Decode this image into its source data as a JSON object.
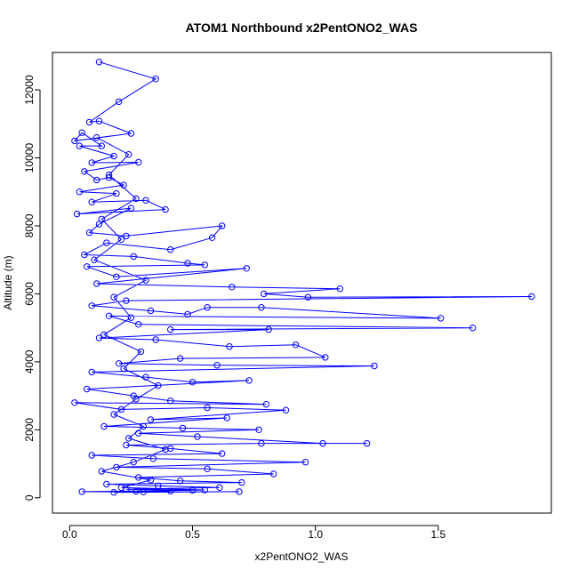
{
  "chart_data": {
    "type": "line",
    "title": "ATOM1 Northbound x2PentONO2_WAS",
    "xlabel": "x2PentONO2_WAS",
    "ylabel": "Altitude (m)",
    "xlim": [
      -0.07,
      1.96
    ],
    "ylim": [
      -450,
      13100
    ],
    "xticks": [
      0.0,
      0.5,
      1.0,
      1.5
    ],
    "xtick_labels": [
      "0.0",
      "0.5",
      "1.0",
      "1.5"
    ],
    "yticks": [
      0,
      2000,
      4000,
      6000,
      8000,
      10000,
      12000
    ],
    "ytick_labels": [
      "0",
      "2000",
      "4000",
      "6000",
      "8000",
      "10000",
      "12000"
    ],
    "grid": false,
    "marker": "open-circle",
    "series": [
      {
        "color": "#0000ff",
        "points": [
          [
            0.12,
            12820
          ],
          [
            0.35,
            12320
          ],
          [
            0.2,
            11650
          ],
          [
            0.08,
            11050
          ],
          [
            0.12,
            11080
          ],
          [
            0.25,
            10720
          ],
          [
            0.02,
            10500
          ],
          [
            0.05,
            10740
          ],
          [
            0.13,
            10350
          ],
          [
            0.04,
            10350
          ],
          [
            0.18,
            10050
          ],
          [
            0.09,
            9860
          ],
          [
            0.28,
            9870
          ],
          [
            0.06,
            9600
          ],
          [
            0.11,
            9350
          ],
          [
            0.16,
            9420
          ],
          [
            0.22,
            9200
          ],
          [
            0.04,
            9000
          ],
          [
            0.19,
            8950
          ],
          [
            0.09,
            8700
          ],
          [
            0.31,
            8750
          ],
          [
            0.39,
            8480
          ],
          [
            0.03,
            8350
          ],
          [
            0.25,
            8520
          ],
          [
            0.12,
            8050
          ],
          [
            0.08,
            7800
          ],
          [
            0.23,
            7700
          ],
          [
            0.62,
            8000
          ],
          [
            0.58,
            7650
          ],
          [
            0.41,
            7300
          ],
          [
            0.15,
            7500
          ],
          [
            0.06,
            7150
          ],
          [
            0.26,
            7100
          ],
          [
            0.48,
            6900
          ],
          [
            0.55,
            6850
          ],
          [
            0.07,
            6800
          ],
          [
            0.19,
            6500
          ],
          [
            0.72,
            6750
          ],
          [
            0.11,
            6300
          ],
          [
            0.66,
            6200
          ],
          [
            1.1,
            6150
          ],
          [
            0.79,
            6000
          ],
          [
            0.97,
            5900
          ],
          [
            1.88,
            5920
          ],
          [
            0.23,
            5800
          ],
          [
            0.09,
            5650
          ],
          [
            0.33,
            5500
          ],
          [
            0.48,
            5400
          ],
          [
            0.56,
            5600
          ],
          [
            0.78,
            5600
          ],
          [
            1.51,
            5280
          ],
          [
            0.16,
            5350
          ],
          [
            0.28,
            5100
          ],
          [
            1.64,
            5000
          ],
          [
            0.41,
            4950
          ],
          [
            0.81,
            4950
          ],
          [
            0.12,
            4700
          ],
          [
            0.35,
            4650
          ],
          [
            0.65,
            4450
          ],
          [
            0.92,
            4500
          ],
          [
            1.04,
            4130
          ],
          [
            0.45,
            4100
          ],
          [
            0.2,
            3950
          ],
          [
            0.6,
            3900
          ],
          [
            1.24,
            3880
          ],
          [
            0.09,
            3700
          ],
          [
            0.31,
            3550
          ],
          [
            0.5,
            3400
          ],
          [
            0.73,
            3450
          ],
          [
            0.07,
            3200
          ],
          [
            0.26,
            3000
          ],
          [
            0.41,
            2850
          ],
          [
            0.8,
            2750
          ],
          [
            0.02,
            2800
          ],
          [
            0.21,
            2600
          ],
          [
            0.56,
            2650
          ],
          [
            0.88,
            2580
          ],
          [
            0.33,
            2300
          ],
          [
            0.64,
            2350
          ],
          [
            0.14,
            2100
          ],
          [
            0.46,
            2050
          ],
          [
            0.77,
            2000
          ],
          [
            0.28,
            1900
          ],
          [
            0.52,
            1800
          ],
          [
            1.03,
            1600
          ],
          [
            1.21,
            1600
          ],
          [
            0.78,
            1600
          ],
          [
            0.23,
            1550
          ],
          [
            0.41,
            1450
          ],
          [
            0.62,
            1300
          ],
          [
            0.09,
            1250
          ],
          [
            0.34,
            1150
          ],
          [
            0.96,
            1050
          ],
          [
            0.19,
            900
          ],
          [
            0.56,
            850
          ],
          [
            0.83,
            700
          ],
          [
            0.28,
            600
          ],
          [
            0.45,
            500
          ],
          [
            0.7,
            450
          ],
          [
            0.15,
            400
          ],
          [
            0.36,
            350
          ],
          [
            0.61,
            300
          ],
          [
            0.23,
            250
          ],
          [
            0.5,
            220
          ],
          [
            0.05,
            180
          ],
          [
            0.3,
            170
          ],
          [
            0.69,
            180
          ],
          [
            0.18,
            160
          ],
          [
            0.41,
            200
          ],
          [
            0.27,
            190
          ],
          [
            0.55,
            230
          ],
          [
            0.21,
            300
          ],
          [
            0.33,
            520
          ],
          [
            0.13,
            780
          ],
          [
            0.26,
            1050
          ],
          [
            0.39,
            1420
          ],
          [
            0.24,
            1750
          ],
          [
            0.3,
            2100
          ],
          [
            0.18,
            2450
          ],
          [
            0.27,
            2900
          ],
          [
            0.36,
            3300
          ],
          [
            0.22,
            3800
          ],
          [
            0.29,
            4300
          ],
          [
            0.14,
            4800
          ],
          [
            0.25,
            5300
          ],
          [
            0.18,
            5900
          ],
          [
            0.31,
            6400
          ],
          [
            0.1,
            7000
          ],
          [
            0.21,
            7600
          ],
          [
            0.13,
            8200
          ],
          [
            0.27,
            8800
          ],
          [
            0.16,
            9500
          ],
          [
            0.24,
            10100
          ],
          [
            0.11,
            10600
          ]
        ]
      }
    ]
  }
}
